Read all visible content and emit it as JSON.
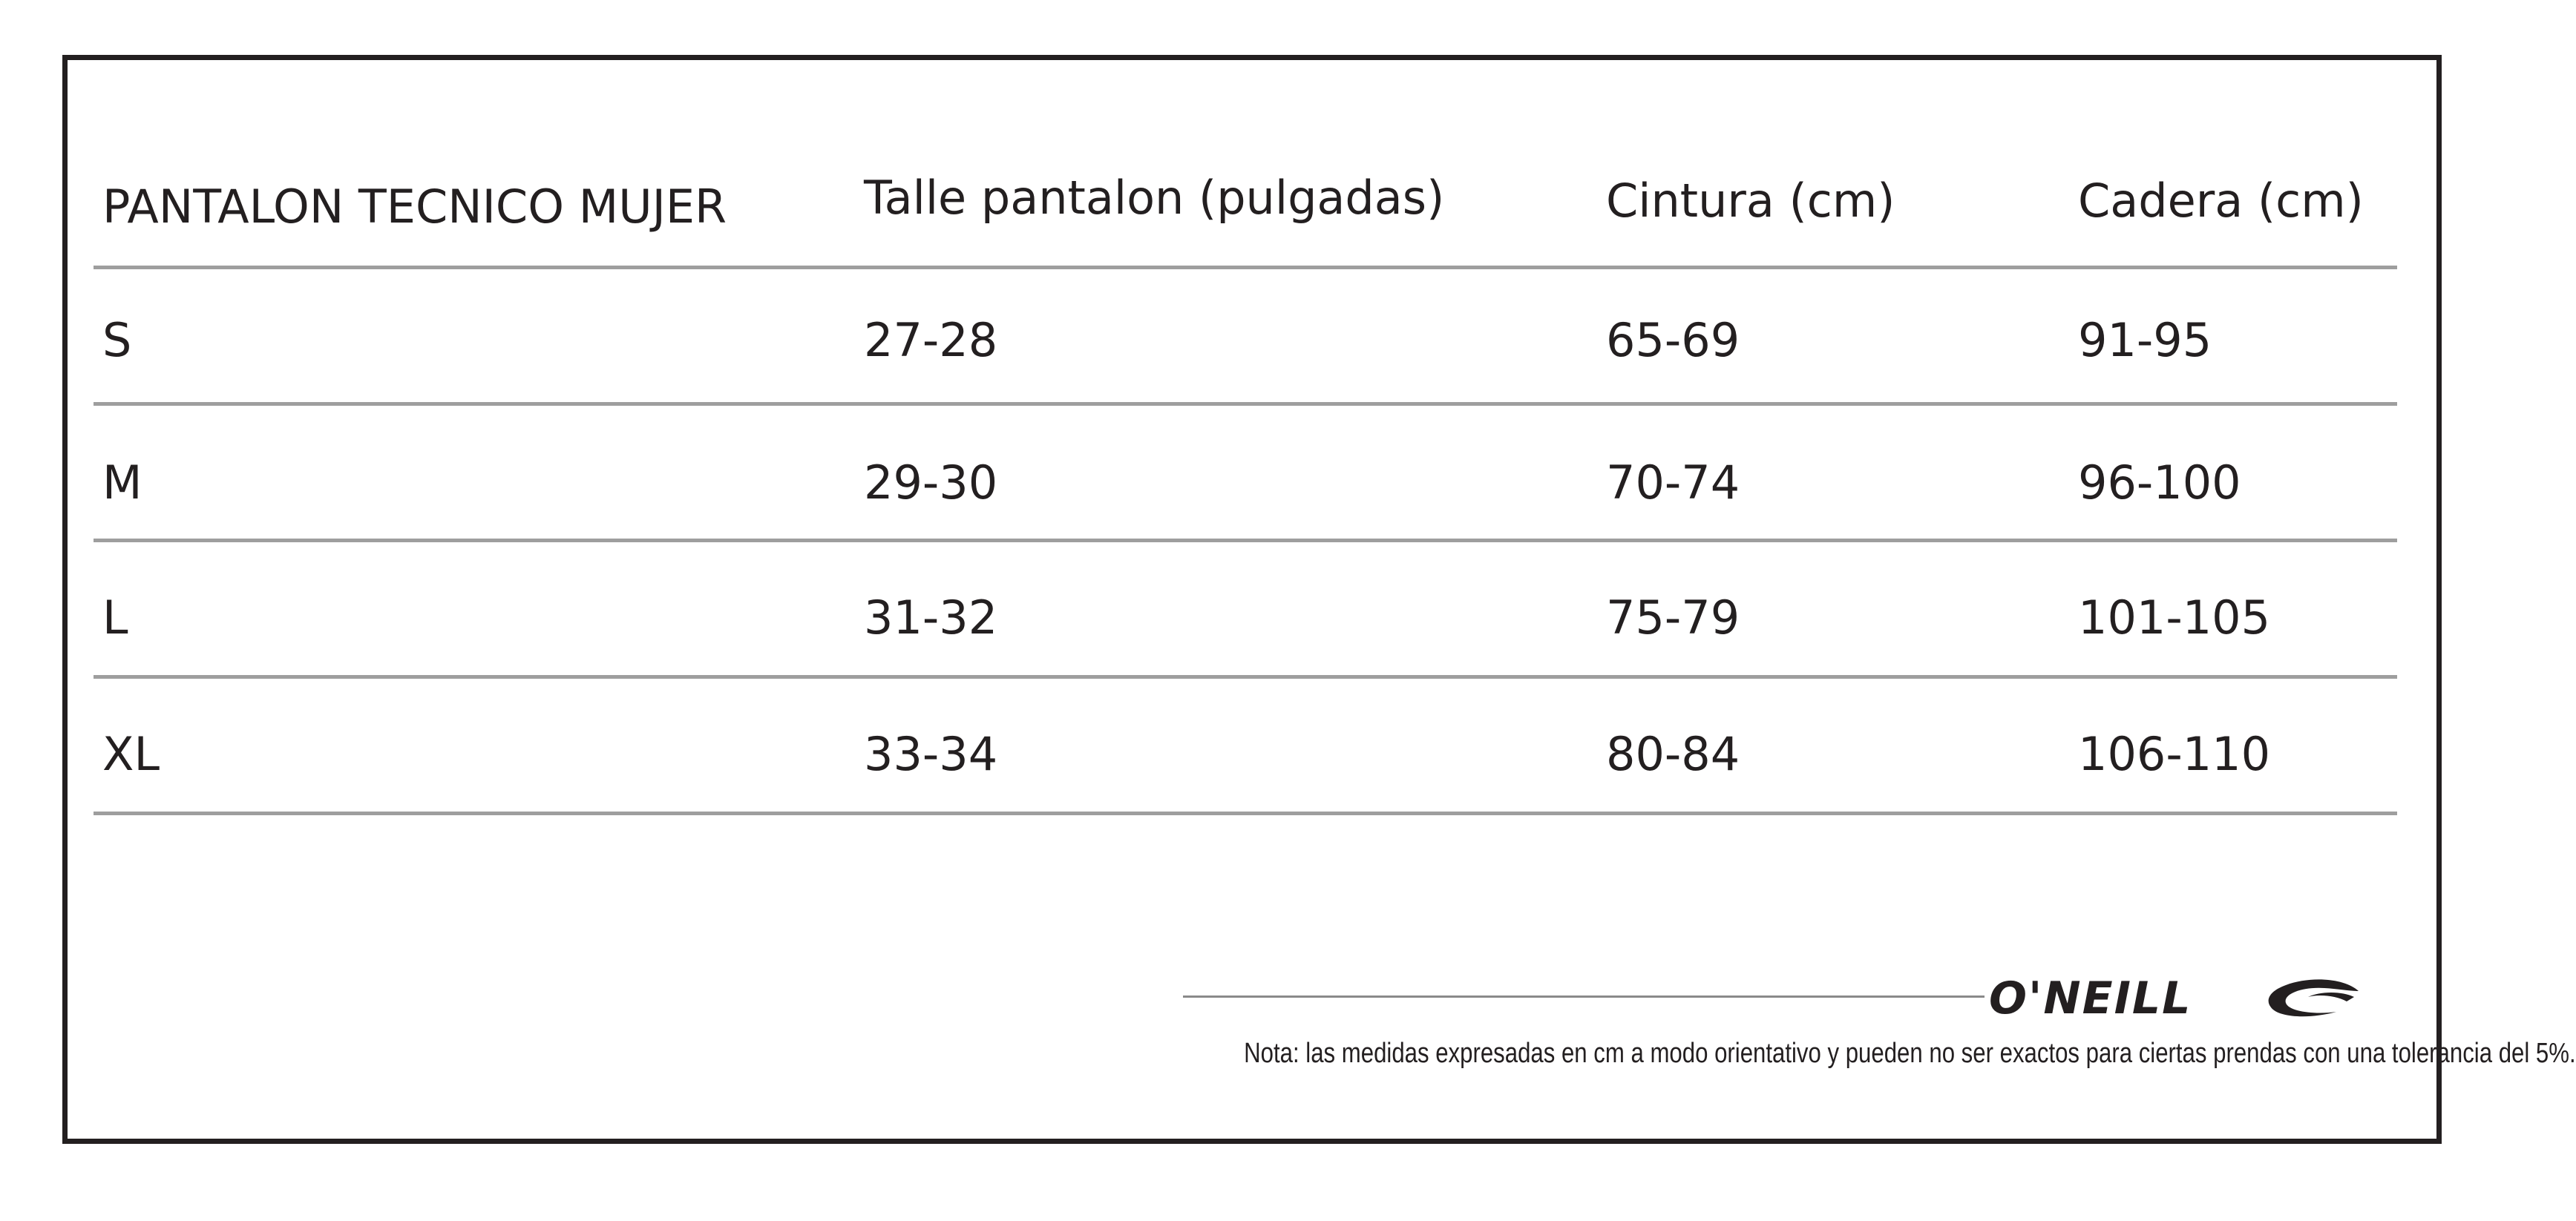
{
  "table": {
    "headers": [
      "PANTALON TECNICO MUJER",
      "Talle pantalon (pulgadas)",
      "Cintura (cm)",
      "Cadera (cm)"
    ],
    "rows": [
      [
        "S",
        "27-28",
        "65-69",
        "91-95"
      ],
      [
        "M",
        "29-30",
        "70-74",
        "96-100"
      ],
      [
        "L",
        "31-32",
        "75-79",
        "101-105"
      ],
      [
        "XL",
        "33-34",
        "80-84",
        "106-110"
      ]
    ]
  },
  "brand": {
    "name": "O'NEILL",
    "logo_icon": "oneill-wave-logo"
  },
  "note": "Nota: las medidas expresadas en cm a modo orientativo y pueden no ser exactos para ciertas prendas con una tolerancia del 5%.",
  "colors": {
    "text": "#231f20",
    "frame": "#231f20",
    "divider": "#9e9e9e"
  }
}
